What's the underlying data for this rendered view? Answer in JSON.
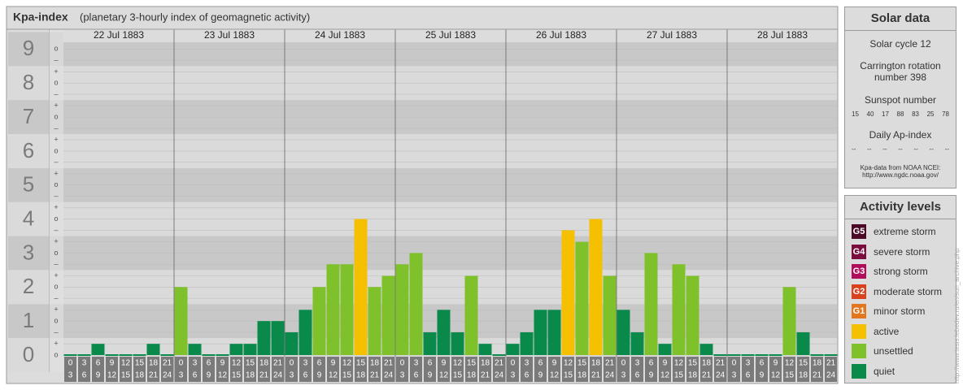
{
  "chart_data": {
    "type": "bar",
    "title": "Kpa-index",
    "subtitle": "(planetary 3-hourly index of geomagnetic activity)",
    "days": [
      "22 Jul 1883",
      "23 Jul 1883",
      "24 Jul 1883",
      "25 Jul 1883",
      "26 Jul 1883",
      "27 Jul 1883",
      "28 Jul 1883"
    ],
    "hours": [
      [
        "0",
        "3"
      ],
      [
        "3",
        "6"
      ],
      [
        "6",
        "9"
      ],
      [
        "9",
        "12"
      ],
      [
        "12",
        "15"
      ],
      [
        "15",
        "18"
      ],
      [
        "18",
        "21"
      ],
      [
        "21",
        "24"
      ]
    ],
    "values": [
      0,
      0,
      0.33,
      0,
      0,
      0,
      0.33,
      0,
      2,
      0.33,
      0,
      0,
      0.33,
      0.33,
      1,
      1,
      0.67,
      1.33,
      2,
      2.67,
      2.67,
      4,
      2,
      2.33,
      2.67,
      3,
      0.67,
      1.33,
      0.67,
      2.33,
      0.33,
      0,
      0.33,
      0.67,
      1.33,
      1.33,
      3.67,
      3.33,
      4,
      2.33,
      1.33,
      0.67,
      3,
      0.33,
      2.67,
      2.33,
      0.33,
      0,
      0,
      0,
      0,
      0,
      2,
      0.67,
      0,
      0
    ],
    "colors": [
      "#0a8a4a",
      "#0a8a4a",
      "#0a8a4a",
      "#0a8a4a",
      "#0a8a4a",
      "#0a8a4a",
      "#0a8a4a",
      "#0a8a4a",
      "#7fc12a",
      "#0a8a4a",
      "#0a8a4a",
      "#0a8a4a",
      "#0a8a4a",
      "#0a8a4a",
      "#0a8a4a",
      "#0a8a4a",
      "#0a8a4a",
      "#0a8a4a",
      "#7fc12a",
      "#7fc12a",
      "#7fc12a",
      "#f5c000",
      "#7fc12a",
      "#7fc12a",
      "#7fc12a",
      "#7fc12a",
      "#0a8a4a",
      "#0a8a4a",
      "#0a8a4a",
      "#7fc12a",
      "#0a8a4a",
      "#0a8a4a",
      "#0a8a4a",
      "#0a8a4a",
      "#0a8a4a",
      "#0a8a4a",
      "#f5c000",
      "#7fc12a",
      "#f5c000",
      "#7fc12a",
      "#0a8a4a",
      "#0a8a4a",
      "#7fc12a",
      "#0a8a4a",
      "#7fc12a",
      "#7fc12a",
      "#0a8a4a",
      "#0a8a4a",
      "#0a8a4a",
      "#0a8a4a",
      "#0a8a4a",
      "#0a8a4a",
      "#7fc12a",
      "#0a8a4a",
      "#0a8a4a",
      "#0a8a4a"
    ],
    "ylim": [
      0,
      9.2
    ],
    "yticks": [
      0,
      1,
      2,
      3,
      4,
      5,
      6,
      7,
      8,
      9
    ],
    "minor_ticks": [
      {
        "value": 0,
        "label": "o"
      },
      {
        "value": 0.33,
        "label": "+"
      },
      {
        "value": 0.67,
        "label": "–"
      },
      {
        "value": 1,
        "label": "o"
      },
      {
        "value": 1.33,
        "label": "+"
      },
      {
        "value": 1.67,
        "label": "–"
      },
      {
        "value": 2,
        "label": "o"
      },
      {
        "value": 2.33,
        "label": "+"
      },
      {
        "value": 2.67,
        "label": "–"
      },
      {
        "value": 3,
        "label": "o"
      },
      {
        "value": 3.33,
        "label": "+"
      },
      {
        "value": 3.67,
        "label": "–"
      },
      {
        "value": 4,
        "label": "o"
      },
      {
        "value": 4.33,
        "label": "+"
      },
      {
        "value": 4.67,
        "label": "–"
      },
      {
        "value": 5,
        "label": "o"
      },
      {
        "value": 5.33,
        "label": "+"
      },
      {
        "value": 5.67,
        "label": "–"
      },
      {
        "value": 6,
        "label": "o"
      },
      {
        "value": 6.33,
        "label": "+"
      },
      {
        "value": 6.67,
        "label": "–"
      },
      {
        "value": 7,
        "label": "o"
      },
      {
        "value": 7.33,
        "label": "+"
      },
      {
        "value": 7.67,
        "label": "–"
      },
      {
        "value": 8,
        "label": "o"
      },
      {
        "value": 8.33,
        "label": "+"
      },
      {
        "value": 8.67,
        "label": "–"
      },
      {
        "value": 9,
        "label": "o"
      }
    ],
    "grid": true
  },
  "solar": {
    "title": "Solar data",
    "cycle": "Solar cycle 12",
    "carrington": [
      "Carrington rotation",
      "number 398"
    ],
    "sunspot_label": "Sunspot number",
    "sunspot_numbers": [
      15,
      40,
      17,
      88,
      83,
      25,
      78
    ],
    "ap_label": "Daily Ap-index",
    "ap_values": [
      "--",
      "--",
      "--",
      "--",
      "--",
      "--",
      "--"
    ],
    "source": [
      "Kpa-data from NOAA NCEI:",
      "http://www.ngdc.noaa.gov/"
    ]
  },
  "levels": {
    "title": "Activity levels",
    "items": [
      {
        "badge": "G5",
        "label": "extreme storm",
        "color": "#4b0a25"
      },
      {
        "badge": "G4",
        "label": "severe storm",
        "color": "#7a0c3e"
      },
      {
        "badge": "G3",
        "label": "strong storm",
        "color": "#b00d5a"
      },
      {
        "badge": "G2",
        "label": "moderate storm",
        "color": "#d9401c"
      },
      {
        "badge": "G1",
        "label": "minor storm",
        "color": "#e3771e"
      },
      {
        "badge": "",
        "label": "active",
        "color": "#f5c000"
      },
      {
        "badge": "",
        "label": "unsettled",
        "color": "#7fc12a"
      },
      {
        "badge": "",
        "label": "quiet",
        "color": "#0a8a4a"
      }
    ]
  },
  "credit": "http://www.tesis.lebedev.ru/en/sun_archive.php"
}
